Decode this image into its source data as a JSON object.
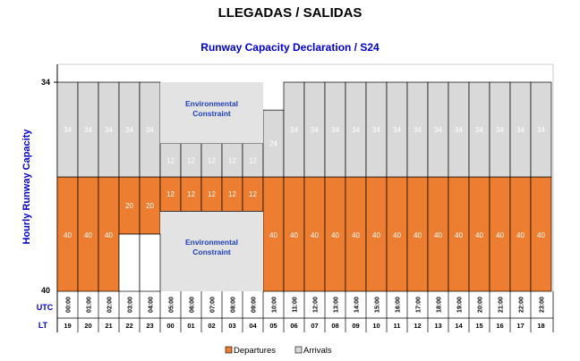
{
  "header": {
    "main_title": "LLEGADAS / SALIDAS"
  },
  "chart_data": {
    "type": "bar",
    "stacked": true,
    "title": "Runway Capacity Declaration / S24",
    "ylabel": "Hourly Runway Capacity",
    "y_tick_labels": [
      "34",
      "40"
    ],
    "row_labels": {
      "utc": "UTC",
      "lt": "LT"
    },
    "categories_utc": [
      "00:00",
      "01:00",
      "02:00",
      "03:00",
      "04:00",
      "05:00",
      "06:00",
      "07:00",
      "08:00",
      "09:00",
      "10:00",
      "11:00",
      "12:00",
      "13:00",
      "14:00",
      "15:00",
      "16:00",
      "17:00",
      "18:00",
      "19:00",
      "20:00",
      "21:00",
      "22:00",
      "23:00"
    ],
    "categories_lt": [
      "19",
      "20",
      "21",
      "22",
      "23",
      "00",
      "01",
      "02",
      "03",
      "04",
      "05",
      "06",
      "07",
      "08",
      "09",
      "10",
      "11",
      "12",
      "13",
      "14",
      "15",
      "16",
      "17",
      "18"
    ],
    "series": [
      {
        "name": "Departures",
        "color": "#ed7d31",
        "values": [
          40,
          40,
          40,
          20,
          20,
          12,
          12,
          12,
          12,
          12,
          40,
          40,
          40,
          40,
          40,
          40,
          40,
          40,
          40,
          40,
          40,
          40,
          40,
          40
        ]
      },
      {
        "name": "Arrivals",
        "color": "#d9d9d9",
        "values": [
          34,
          34,
          34,
          34,
          34,
          12,
          12,
          12,
          12,
          12,
          24,
          34,
          34,
          34,
          34,
          34,
          34,
          34,
          34,
          34,
          34,
          34,
          34,
          34
        ]
      }
    ],
    "annotations": [
      {
        "text": "Environmental\nConstraint",
        "band": "arrivals",
        "from_hour": "05:00",
        "to_hour": "10:00"
      },
      {
        "text": "Environmental\nConstraint",
        "band": "departures",
        "from_hour": "05:00",
        "to_hour": "10:00"
      }
    ],
    "legend": {
      "position": "bottom",
      "items": [
        "Departures",
        "Arrivals"
      ]
    }
  }
}
